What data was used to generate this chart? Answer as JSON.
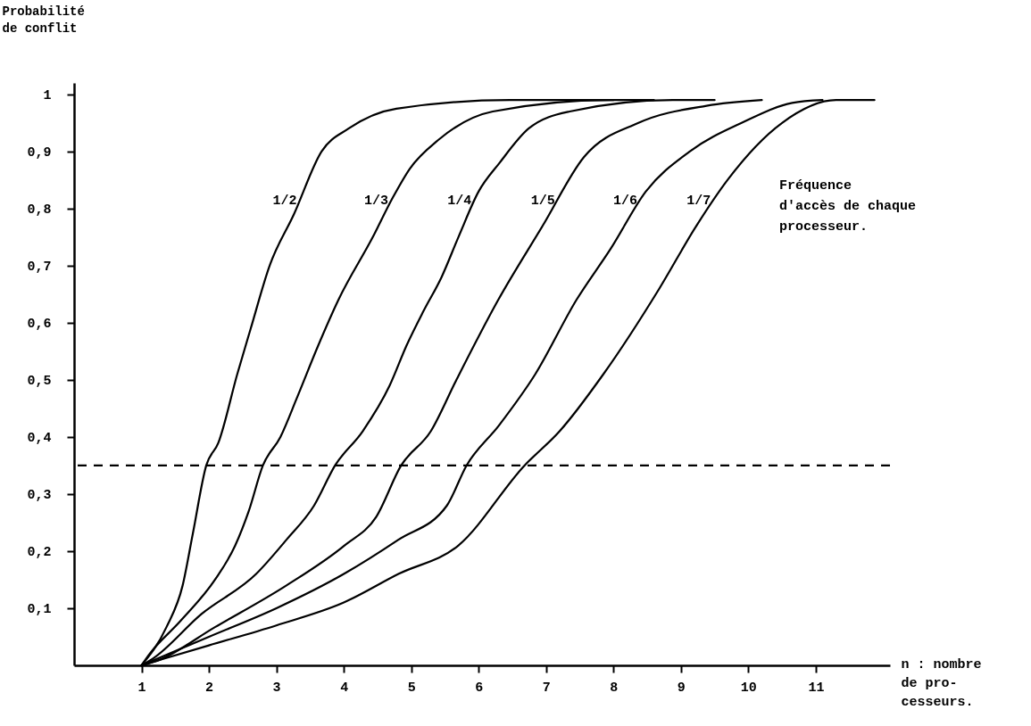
{
  "chart_data": {
    "type": "line",
    "xlabel": "n : nombre\nde pro-\ncesseurs.",
    "ylabel": "Probabilité\nde conflit",
    "legend_title": "  Fréquence\nd'accès de chaque\nprocesseur.",
    "xlim": [
      0,
      12.1
    ],
    "ylim": [
      0,
      1.02
    ],
    "xticks": [
      1,
      2,
      3,
      4,
      5,
      6,
      7,
      8,
      9,
      10,
      11
    ],
    "yticks": [
      {
        "value": 0.1,
        "label": "0,1"
      },
      {
        "value": 0.2,
        "label": "0,2"
      },
      {
        "value": 0.3,
        "label": "0,3"
      },
      {
        "value": 0.4,
        "label": "0,4"
      },
      {
        "value": 0.5,
        "label": "0,5"
      },
      {
        "value": 0.6,
        "label": "0,6"
      },
      {
        "value": 0.7,
        "label": "0,7"
      },
      {
        "value": 0.8,
        "label": "0,8"
      },
      {
        "value": 0.9,
        "label": "0,9"
      },
      1
    ],
    "grid": false,
    "legend": false,
    "marker": "none",
    "line_style": "solid",
    "ref_lines": [
      {
        "axis": "y",
        "value": 0.35,
        "line_style": "dashed",
        "color": "#000000"
      }
    ],
    "series": [
      {
        "name": "1/2",
        "color": "#000000",
        "x": [
          1,
          1.37,
          1.61,
          1.76,
          1.96,
          2.14,
          2.42,
          2.62,
          2.9,
          3.26,
          3.67,
          4.07,
          4.78,
          6.46,
          8.0
        ],
        "values": [
          0,
          0.067,
          0.14,
          0.23,
          0.35,
          0.39,
          0.51,
          0.59,
          0.7,
          0.79,
          0.9,
          0.94,
          0.975,
          0.99,
          0.99
        ]
      },
      {
        "name": "1/3",
        "color": "#000000",
        "x": [
          1,
          1.12,
          1.58,
          2.09,
          2.39,
          2.59,
          2.8,
          3.06,
          3.31,
          3.62,
          3.92,
          4.43,
          4.73,
          4.98,
          5.4,
          6.21,
          7.96,
          8.6
        ],
        "values": [
          0,
          0.02,
          0.078,
          0.15,
          0.21,
          0.27,
          0.35,
          0.4,
          0.47,
          0.56,
          0.64,
          0.75,
          0.82,
          0.87,
          0.92,
          0.97,
          0.99,
          0.99
        ]
      },
      {
        "name": "1/4",
        "color": "#000000",
        "x": [
          1,
          1.17,
          1.89,
          2.7,
          3.15,
          3.56,
          3.87,
          4.28,
          4.68,
          4.93,
          5.18,
          5.45,
          5.7,
          6.0,
          6.31,
          6.74,
          7.35,
          8.88,
          9.5
        ],
        "values": [
          0,
          0.012,
          0.09,
          0.16,
          0.22,
          0.28,
          0.35,
          0.41,
          0.49,
          0.56,
          0.62,
          0.68,
          0.75,
          0.83,
          0.88,
          0.94,
          0.97,
          0.99,
          0.99
        ]
      },
      {
        "name": "1/5",
        "color": "#000000",
        "x": [
          1,
          1.23,
          2.09,
          3.15,
          4.01,
          4.48,
          4.85,
          5.29,
          5.67,
          6.29,
          6.95,
          7.56,
          8.37,
          9.38,
          10.2
        ],
        "values": [
          0,
          0.008,
          0.067,
          0.14,
          0.21,
          0.26,
          0.35,
          0.41,
          0.5,
          0.64,
          0.77,
          0.89,
          0.95,
          0.98,
          0.99
        ]
      },
      {
        "name": "1/6",
        "color": "#000000",
        "x": [
          1,
          2,
          3,
          4,
          4.81,
          5.53,
          5.82,
          6.3,
          6.84,
          7.45,
          7.96,
          8.48,
          9.13,
          9.9,
          10.65,
          11.1
        ],
        "values": [
          0,
          0.05,
          0.1,
          0.16,
          0.22,
          0.28,
          0.35,
          0.42,
          0.51,
          0.64,
          0.73,
          0.83,
          0.9,
          0.95,
          0.985,
          0.99
        ]
      },
      {
        "name": "1/7",
        "color": "#000000",
        "x": [
          1,
          2,
          3,
          4,
          4.81,
          5.7,
          6.68,
          7.2,
          7.85,
          8.68,
          9.23,
          9.69,
          10.5,
          11.3,
          11.87
        ],
        "values": [
          0,
          0.035,
          0.07,
          0.11,
          0.16,
          0.21,
          0.35,
          0.41,
          0.51,
          0.66,
          0.77,
          0.85,
          0.95,
          0.99,
          0.99
        ]
      }
    ]
  }
}
